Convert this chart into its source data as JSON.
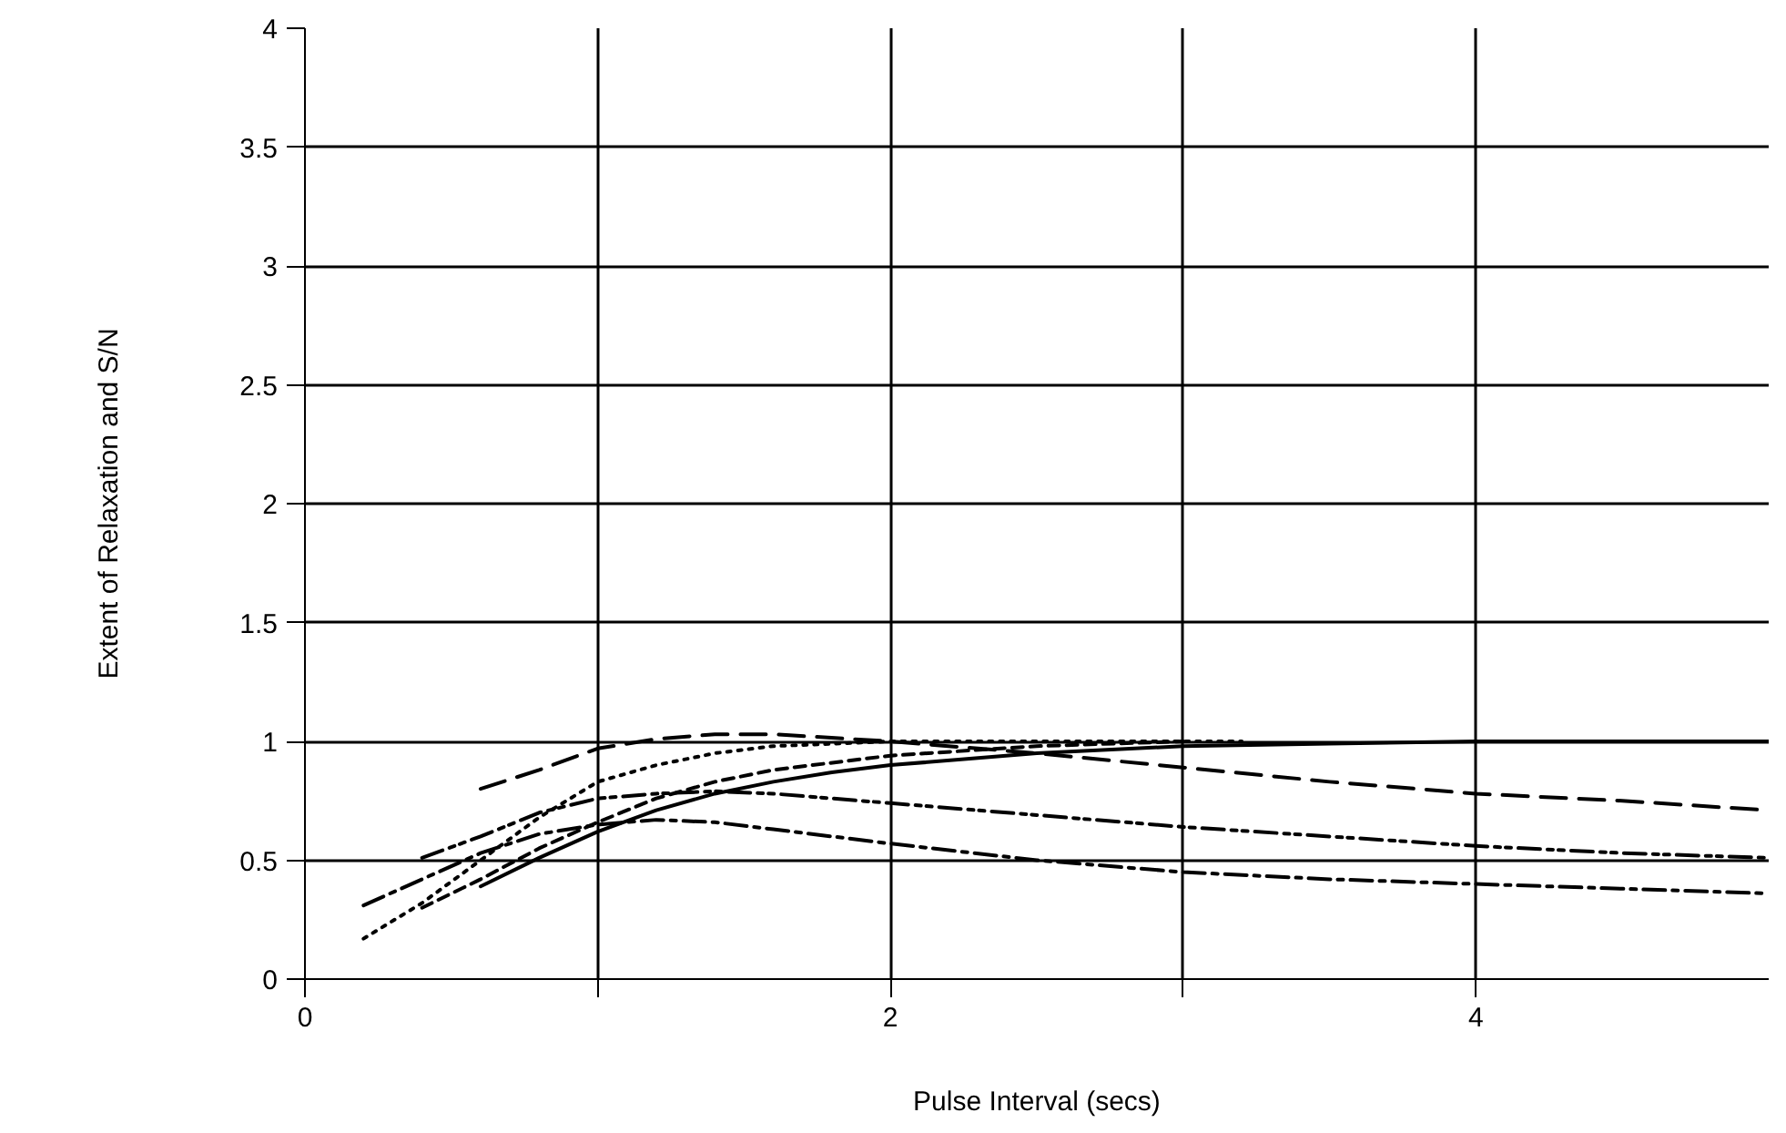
{
  "chart_data": {
    "type": "line",
    "xlabel": "Pulse Interval (secs)",
    "ylabel": "Extent of Relaxation and S/N",
    "xlim": [
      0,
      5
    ],
    "ylim": [
      0,
      4
    ],
    "xticks": [
      0,
      {
        "value": 1,
        "label": null
      },
      2,
      {
        "value": 3,
        "label": null
      },
      4
    ],
    "yticks": [
      0,
      0.5,
      1,
      1.5,
      2,
      2.5,
      3,
      3.5,
      4
    ],
    "grid": true,
    "marker": "none",
    "series": [
      {
        "color": "#000000",
        "line_style": "longdash",
        "x": [
          0.6,
          0.8,
          1.0,
          1.2,
          1.4,
          1.6,
          2.0,
          2.5,
          3,
          3.5,
          4,
          4.5,
          5
        ],
        "values": [
          0.8,
          0.88,
          0.97,
          1.01,
          1.03,
          1.03,
          1.0,
          0.95,
          0.89,
          0.83,
          0.78,
          0.75,
          0.71
        ]
      },
      {
        "color": "#000000",
        "line_style": "dotted",
        "x": [
          0.2,
          0.4,
          0.6,
          0.8,
          1.0,
          1.2,
          1.4,
          1.6,
          2,
          2.5,
          3,
          3.2
        ],
        "values": [
          0.17,
          0.32,
          0.5,
          0.68,
          0.83,
          0.9,
          0.95,
          0.98,
          1.0,
          1.0,
          1.0,
          1.0
        ]
      },
      {
        "color": "#000000",
        "line_style": "dashed",
        "x": [
          0.4,
          0.6,
          0.8,
          1,
          1.2,
          1.4,
          1.6,
          2,
          2.5,
          3
        ],
        "values": [
          0.3,
          0.42,
          0.55,
          0.66,
          0.76,
          0.83,
          0.88,
          0.94,
          0.98,
          1.0
        ]
      },
      {
        "color": "#000000",
        "line_style": "solid",
        "x": [
          0.6,
          0.8,
          1,
          1.2,
          1.4,
          1.6,
          1.8,
          2,
          2.5,
          3,
          3.5,
          4,
          5
        ],
        "values": [
          0.39,
          0.51,
          0.62,
          0.71,
          0.78,
          0.83,
          0.87,
          0.9,
          0.95,
          0.98,
          0.99,
          1.0,
          1.0
        ]
      },
      {
        "color": "#000000",
        "line_style": "dashdotdot",
        "x": [
          0.4,
          0.6,
          0.8,
          1,
          1.2,
          1.4,
          1.6,
          2,
          2.5,
          3,
          3.5,
          4,
          4.5,
          5
        ],
        "values": [
          0.51,
          0.6,
          0.7,
          0.76,
          0.78,
          0.79,
          0.78,
          0.74,
          0.69,
          0.64,
          0.6,
          0.56,
          0.53,
          0.51
        ]
      },
      {
        "color": "#000000",
        "line_style": "dashdot",
        "x": [
          0.2,
          0.4,
          0.6,
          0.8,
          1,
          1.2,
          1.4,
          1.6,
          2,
          2.5,
          3,
          3.5,
          4,
          4.5,
          5
        ],
        "values": [
          0.31,
          0.42,
          0.53,
          0.61,
          0.65,
          0.67,
          0.66,
          0.63,
          0.57,
          0.5,
          0.45,
          0.42,
          0.4,
          0.38,
          0.36
        ]
      }
    ]
  }
}
